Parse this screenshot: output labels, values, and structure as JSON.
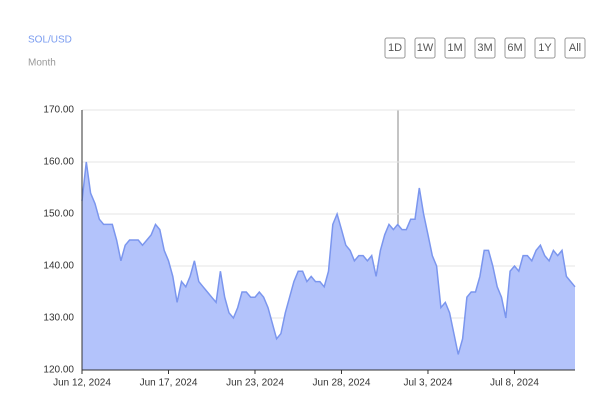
{
  "chart_data": {
    "type": "area",
    "title": "SOL/USD",
    "subtitle": "Month",
    "range_buttons": [
      "1D",
      "1W",
      "1M",
      "3M",
      "6M",
      "1Y",
      "All"
    ],
    "categories": [
      "Jun 12, 2024",
      null,
      null,
      null,
      null,
      null,
      null,
      null,
      null,
      null,
      null,
      null,
      null,
      null,
      null,
      null,
      null,
      null,
      null,
      null,
      "Jun 17, 2024",
      null,
      null,
      null,
      null,
      null,
      null,
      null,
      null,
      null,
      null,
      null,
      null,
      null,
      null,
      null,
      null,
      null,
      null,
      null,
      "Jun 23, 2024",
      null,
      null,
      null,
      null,
      null,
      null,
      null,
      null,
      null,
      null,
      null,
      null,
      null,
      null,
      null,
      null,
      null,
      null,
      null,
      "Jun 28, 2024",
      null,
      null,
      null,
      null,
      null,
      null,
      null,
      null,
      null,
      null,
      null,
      null,
      null,
      null,
      null,
      null,
      null,
      null,
      null,
      "Jul 3, 2024",
      null,
      null,
      null,
      null,
      null,
      null,
      null,
      null,
      null,
      null,
      null,
      null,
      null,
      null,
      null,
      null,
      null,
      null,
      null,
      "Jul 8, 2024",
      null,
      null,
      null,
      null,
      null,
      null,
      null,
      null,
      null,
      null,
      null,
      null,
      null,
      null
    ],
    "values": [
      152.5,
      160,
      154,
      152,
      149,
      148,
      148,
      148,
      145,
      141,
      144,
      145,
      145,
      145,
      144,
      145,
      146,
      148,
      147,
      143,
      141,
      138,
      133,
      137,
      136,
      138,
      141,
      137,
      136,
      135,
      134,
      133,
      139,
      134,
      131,
      130,
      132,
      135,
      135,
      134,
      134,
      135,
      134,
      132,
      129,
      126,
      127,
      131,
      134,
      137,
      139,
      139,
      137,
      138,
      137,
      137,
      136,
      139,
      148,
      150,
      147,
      144,
      143,
      141,
      142,
      142,
      141,
      142,
      138,
      143,
      146,
      148,
      147,
      148,
      147,
      147,
      149,
      149,
      155,
      150,
      146,
      142,
      140,
      132,
      133,
      131,
      127,
      123,
      126,
      134,
      135,
      135,
      138,
      143,
      143,
      140,
      136,
      134,
      130,
      139,
      140,
      139,
      142,
      142,
      141,
      143,
      144,
      142,
      141,
      143,
      142,
      143,
      138,
      137,
      136
    ],
    "color": "#7b96ee",
    "fill": "#b3c3fb",
    "ylim": [
      120,
      170
    ],
    "yticks": [
      {
        "value": 120,
        "label": "120.00"
      },
      {
        "value": 130,
        "label": "130.00"
      },
      {
        "value": 140,
        "label": "140.00"
      },
      {
        "value": 150,
        "label": "150.00"
      },
      {
        "value": 160,
        "label": "160.00"
      },
      {
        "value": 170,
        "label": "170.00"
      }
    ],
    "grid": true
  }
}
